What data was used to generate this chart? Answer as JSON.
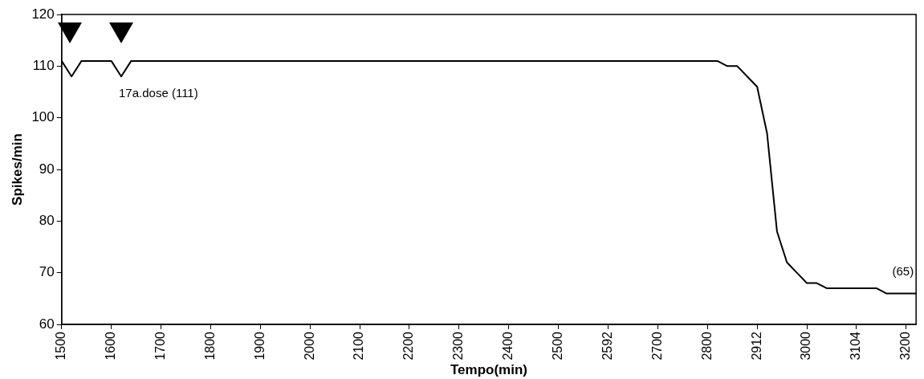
{
  "chart_data": {
    "type": "line",
    "xlabel": "Tempo(min)",
    "ylabel": "Spikes/min",
    "categories": [
      "1500",
      null,
      null,
      null,
      null,
      "1600",
      null,
      null,
      null,
      null,
      "1700",
      null,
      null,
      null,
      null,
      "1800",
      null,
      null,
      null,
      null,
      "1900",
      null,
      null,
      null,
      null,
      "2000",
      null,
      null,
      null,
      null,
      "2100",
      null,
      null,
      null,
      null,
      "2200",
      null,
      null,
      null,
      null,
      "2300",
      null,
      null,
      null,
      null,
      "2400",
      null,
      null,
      null,
      null,
      "2500",
      null,
      null,
      null,
      null,
      "2592",
      null,
      null,
      null,
      null,
      "2700",
      null,
      null,
      null,
      null,
      "2800",
      null,
      null,
      null,
      null,
      "2912",
      null,
      null,
      null,
      null,
      "3000",
      null,
      null,
      null,
      null,
      "3104",
      null,
      null,
      null,
      null,
      "3200",
      null
    ],
    "series": [
      {
        "color": "#000000",
        "values": [
          111,
          108,
          111,
          111,
          111,
          111,
          108,
          111,
          111,
          111,
          111,
          111,
          111,
          111,
          111,
          111,
          111,
          111,
          111,
          111,
          111,
          111,
          111,
          111,
          111,
          111,
          111,
          111,
          111,
          111,
          111,
          111,
          111,
          111,
          111,
          111,
          111,
          111,
          111,
          111,
          111,
          111,
          111,
          111,
          111,
          111,
          111,
          111,
          111,
          111,
          111,
          111,
          111,
          111,
          111,
          111,
          111,
          111,
          111,
          111,
          111,
          111,
          111,
          111,
          111,
          111,
          111,
          110,
          110,
          108,
          106,
          97,
          78,
          72,
          70,
          68,
          68,
          67,
          67,
          67,
          67,
          67,
          67,
          66,
          66,
          66,
          66
        ]
      }
    ],
    "ylim": [
      60,
      120
    ],
    "yticks": [
      60,
      70,
      80,
      90,
      100,
      110,
      120
    ],
    "grid": false,
    "legend": false,
    "marker": "none",
    "line_style": "solid",
    "annotations": [
      "17a.dose (111)",
      "(65)"
    ]
  }
}
